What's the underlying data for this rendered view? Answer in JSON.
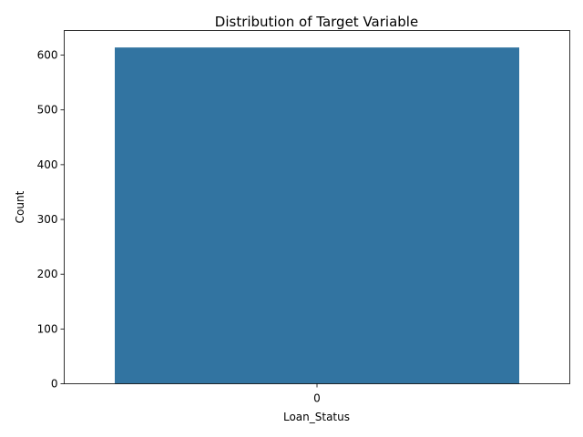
{
  "chart_data": {
    "type": "bar",
    "title": "Distribution of Target Variable",
    "xlabel": "Loan_Status",
    "ylabel": "Count",
    "categories": [
      "0"
    ],
    "values": [
      614
    ],
    "ylim": [
      0,
      645
    ],
    "yticks": [
      0,
      100,
      200,
      300,
      400,
      500,
      600
    ],
    "grid": false,
    "legend": "none",
    "bar_color": "#3274a1"
  }
}
